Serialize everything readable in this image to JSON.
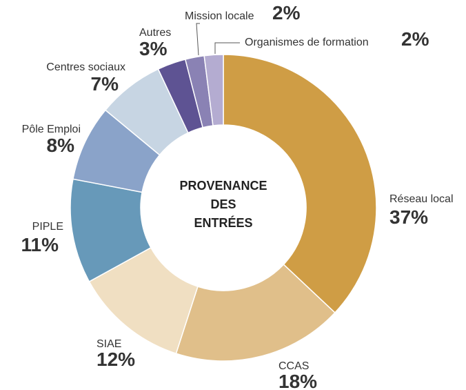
{
  "chart_data": {
    "type": "donut",
    "title": "PROVENANCE DES ENTRÉES",
    "categories": [
      "Réseau local",
      "CCAS",
      "SIAE",
      "PIPLE",
      "Pôle Emploi",
      "Centres sociaux",
      "Autres",
      "Mission locale",
      "Organismes de formation"
    ],
    "values": [
      37,
      18,
      12,
      11,
      8,
      7,
      3,
      2,
      2
    ],
    "value_labels": [
      "37%",
      "18%",
      "12%",
      "11%",
      "8%",
      "7%",
      "3%",
      "2%",
      "2%"
    ],
    "colors": [
      "#cf9d45",
      "#e0bf8a",
      "#f0dfc2",
      "#6799b9",
      "#8aa3c9",
      "#c7d5e3",
      "#5e5393",
      "#8a82b4",
      "#b4acd1"
    ]
  }
}
